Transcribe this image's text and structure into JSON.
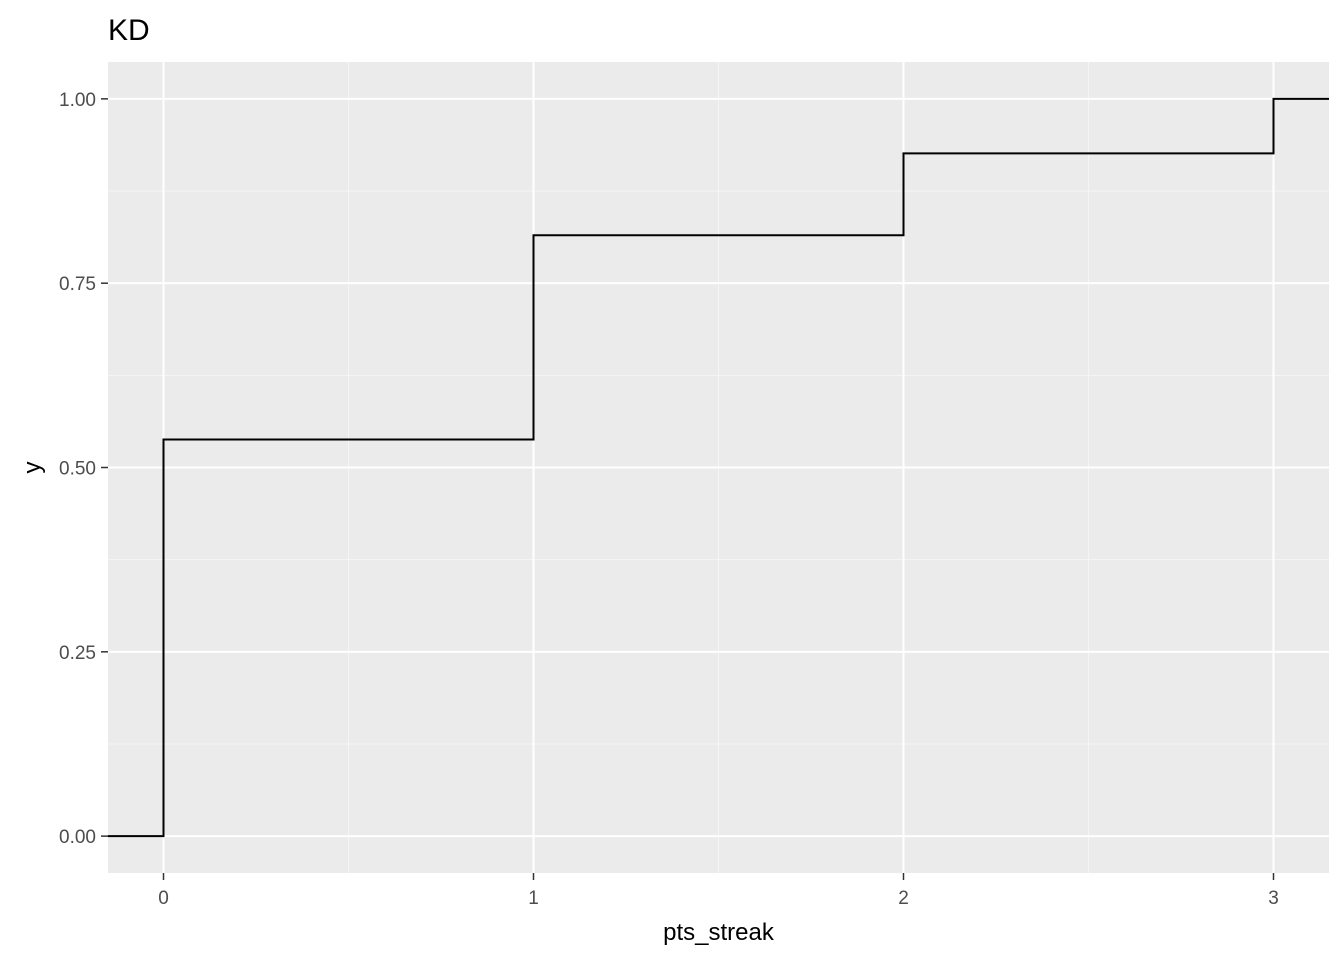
{
  "chart_data": {
    "type": "step",
    "title": "KD",
    "xlabel": "pts_streak",
    "ylabel": "y",
    "xlim": [
      -0.15,
      3.15
    ],
    "ylim": [
      -0.05,
      1.05
    ],
    "x_ticks": [
      0,
      1,
      2,
      3
    ],
    "x_tick_labels": [
      "0",
      "1",
      "2",
      "3"
    ],
    "x_minor_ticks": [
      0.5,
      1.5,
      2.5
    ],
    "y_ticks": [
      0,
      0.25,
      0.5,
      0.75,
      1.0
    ],
    "y_tick_labels": [
      "0.00",
      "0.25",
      "0.50",
      "0.75",
      "1.00"
    ],
    "y_minor_ticks": [
      0.125,
      0.375,
      0.625,
      0.875
    ],
    "grid": true,
    "legend": "none",
    "series": [
      {
        "x": [
          0,
          1,
          2,
          3
        ],
        "y": [
          0.538,
          0.815,
          0.926,
          1.0
        ],
        "start_y": 0,
        "color": "#000000"
      }
    ],
    "colors": {
      "panel_background": "#ebebeb",
      "grid_major": "#ffffff",
      "grid_minor": "#f5f5f5",
      "line": "#000000"
    }
  }
}
